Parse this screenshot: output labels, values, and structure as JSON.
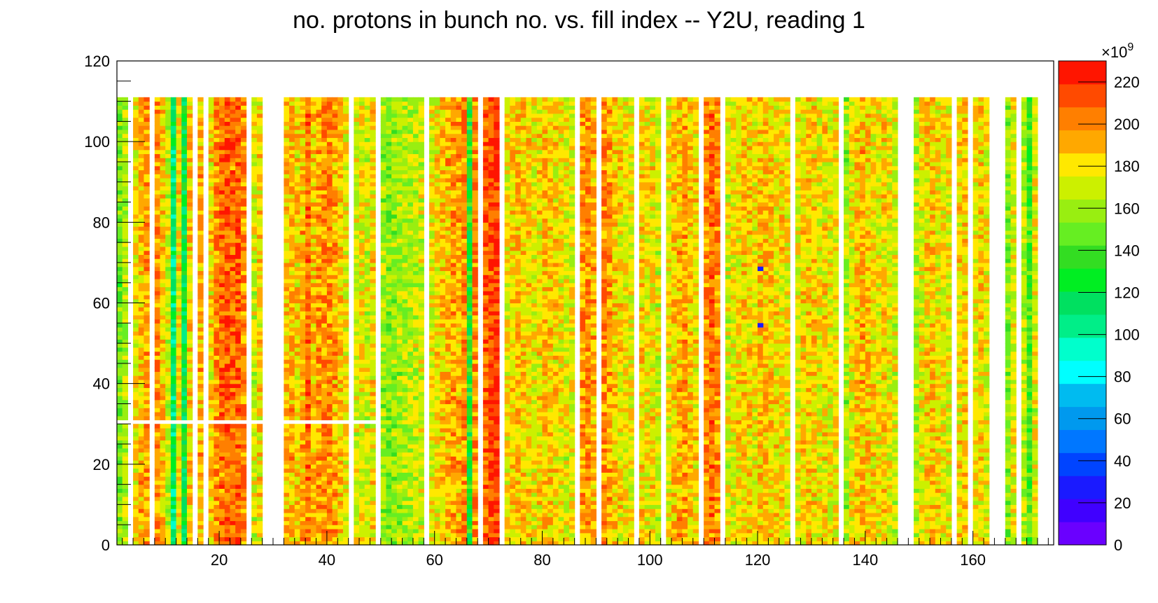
{
  "chart_data": {
    "type": "heatmap",
    "title": "no. protons in bunch no. vs. fill index -- Y2U, reading 1",
    "xlabel": "",
    "ylabel": "",
    "xlim": [
      1,
      175
    ],
    "ylim": [
      0,
      120
    ],
    "x_ticks": [
      20,
      40,
      60,
      80,
      100,
      120,
      140,
      160
    ],
    "y_ticks": [
      0,
      20,
      40,
      60,
      80,
      100,
      120
    ],
    "z_ticks": [
      0,
      20,
      40,
      60,
      80,
      100,
      120,
      140,
      160,
      180,
      200,
      220
    ],
    "z_exponent_label": "×10",
    "z_exponent_power": "9",
    "zlim": [
      0,
      230
    ],
    "bunch_range": [
      0,
      111
    ],
    "palette": [
      "#6a00ff",
      "#4000ff",
      "#1a1aff",
      "#0044ff",
      "#0077ff",
      "#0099ee",
      "#00bbf0",
      "#00ffff",
      "#00ffcc",
      "#00ee88",
      "#00e060",
      "#00ee22",
      "#33dd22",
      "#66ee22",
      "#99ee11",
      "#ccf000",
      "#ffe800",
      "#ffa800",
      "#ff7f00",
      "#ff4a00",
      "#ff1500"
    ],
    "fill_columns": [
      {
        "x": 1,
        "level": 150
      },
      {
        "x": 2,
        "level": 165
      },
      {
        "x": 4,
        "level": 178
      },
      {
        "x": 5,
        "level": 190
      },
      {
        "x": 6,
        "level": 195
      },
      {
        "x": 8,
        "level": 196
      },
      {
        "x": 9,
        "level": 185
      },
      {
        "x": 10,
        "level": 170
      },
      {
        "x": 11,
        "level": 110
      },
      {
        "x": 12,
        "level": 180
      },
      {
        "x": 13,
        "level": 120
      },
      {
        "x": 14,
        "level": 185
      },
      {
        "x": 16,
        "level": 190
      },
      {
        "x": 18,
        "level": 182
      },
      {
        "x": 19,
        "level": 200
      },
      {
        "x": 20,
        "level": 205
      },
      {
        "x": 21,
        "level": 208
      },
      {
        "x": 22,
        "level": 205
      },
      {
        "x": 23,
        "level": 210
      },
      {
        "x": 24,
        "level": 200
      },
      {
        "x": 26,
        "level": 170
      },
      {
        "x": 27,
        "level": 180
      },
      {
        "x": 32,
        "level": 185
      },
      {
        "x": 33,
        "level": 190
      },
      {
        "x": 34,
        "level": 182
      },
      {
        "x": 35,
        "level": 190
      },
      {
        "x": 36,
        "level": 205
      },
      {
        "x": 37,
        "level": 188
      },
      {
        "x": 38,
        "level": 195
      },
      {
        "x": 39,
        "level": 198
      },
      {
        "x": 40,
        "level": 200
      },
      {
        "x": 41,
        "level": 192
      },
      {
        "x": 42,
        "level": 185
      },
      {
        "x": 43,
        "level": 178
      },
      {
        "x": 45,
        "level": 172
      },
      {
        "x": 46,
        "level": 178
      },
      {
        "x": 47,
        "level": 170
      },
      {
        "x": 48,
        "level": 180
      },
      {
        "x": 50,
        "level": 160
      },
      {
        "x": 51,
        "level": 155
      },
      {
        "x": 52,
        "level": 158
      },
      {
        "x": 53,
        "level": 160
      },
      {
        "x": 54,
        "level": 162
      },
      {
        "x": 55,
        "level": 165
      },
      {
        "x": 56,
        "level": 168
      },
      {
        "x": 57,
        "level": 170
      },
      {
        "x": 59,
        "level": 175
      },
      {
        "x": 60,
        "level": 180
      },
      {
        "x": 61,
        "level": 185
      },
      {
        "x": 62,
        "level": 190
      },
      {
        "x": 63,
        "level": 195
      },
      {
        "x": 64,
        "level": 192
      },
      {
        "x": 65,
        "level": 198
      },
      {
        "x": 66,
        "level": 130
      },
      {
        "x": 67,
        "level": 200
      },
      {
        "x": 69,
        "level": 205
      },
      {
        "x": 70,
        "level": 215
      },
      {
        "x": 71,
        "level": 218
      },
      {
        "x": 73,
        "level": 178
      },
      {
        "x": 74,
        "level": 185
      },
      {
        "x": 75,
        "level": 190
      },
      {
        "x": 76,
        "level": 186
      },
      {
        "x": 77,
        "level": 182
      },
      {
        "x": 78,
        "level": 175
      },
      {
        "x": 79,
        "level": 180
      },
      {
        "x": 80,
        "level": 188
      },
      {
        "x": 81,
        "level": 185
      },
      {
        "x": 82,
        "level": 180
      },
      {
        "x": 83,
        "level": 178
      },
      {
        "x": 84,
        "level": 172
      },
      {
        "x": 85,
        "level": 175
      },
      {
        "x": 87,
        "level": 195
      },
      {
        "x": 88,
        "level": 198
      },
      {
        "x": 89,
        "level": 190
      },
      {
        "x": 91,
        "level": 200
      },
      {
        "x": 92,
        "level": 195
      },
      {
        "x": 93,
        "level": 185
      },
      {
        "x": 94,
        "level": 180
      },
      {
        "x": 95,
        "level": 178
      },
      {
        "x": 96,
        "level": 175
      },
      {
        "x": 98,
        "level": 182
      },
      {
        "x": 99,
        "level": 178
      },
      {
        "x": 100,
        "level": 180
      },
      {
        "x": 101,
        "level": 170
      },
      {
        "x": 103,
        "level": 175
      },
      {
        "x": 104,
        "level": 185
      },
      {
        "x": 105,
        "level": 190
      },
      {
        "x": 106,
        "level": 195
      },
      {
        "x": 107,
        "level": 185
      },
      {
        "x": 108,
        "level": 180
      },
      {
        "x": 110,
        "level": 200
      },
      {
        "x": 111,
        "level": 205
      },
      {
        "x": 112,
        "level": 200
      },
      {
        "x": 114,
        "level": 170
      },
      {
        "x": 115,
        "level": 175
      },
      {
        "x": 116,
        "level": 180
      },
      {
        "x": 117,
        "level": 185
      },
      {
        "x": 118,
        "level": 182
      },
      {
        "x": 119,
        "level": 178
      },
      {
        "x": 120,
        "level": 188
      },
      {
        "x": 121,
        "level": 190
      },
      {
        "x": 122,
        "level": 185
      },
      {
        "x": 123,
        "level": 180
      },
      {
        "x": 124,
        "level": 182
      },
      {
        "x": 125,
        "level": 178
      },
      {
        "x": 127,
        "level": 175
      },
      {
        "x": 128,
        "level": 180
      },
      {
        "x": 129,
        "level": 185
      },
      {
        "x": 130,
        "level": 182
      },
      {
        "x": 131,
        "level": 178
      },
      {
        "x": 132,
        "level": 180
      },
      {
        "x": 133,
        "level": 175
      },
      {
        "x": 134,
        "level": 178
      },
      {
        "x": 136,
        "level": 160
      },
      {
        "x": 137,
        "level": 175
      },
      {
        "x": 138,
        "level": 185
      },
      {
        "x": 139,
        "level": 190
      },
      {
        "x": 140,
        "level": 185
      },
      {
        "x": 141,
        "level": 180
      },
      {
        "x": 142,
        "level": 178
      },
      {
        "x": 143,
        "level": 182
      },
      {
        "x": 144,
        "level": 175
      },
      {
        "x": 145,
        "level": 170
      },
      {
        "x": 149,
        "level": 165
      },
      {
        "x": 150,
        "level": 178
      },
      {
        "x": 151,
        "level": 182
      },
      {
        "x": 152,
        "level": 185
      },
      {
        "x": 153,
        "level": 180
      },
      {
        "x": 154,
        "level": 178
      },
      {
        "x": 155,
        "level": 175
      },
      {
        "x": 157,
        "level": 180
      },
      {
        "x": 158,
        "level": 185
      },
      {
        "x": 160,
        "level": 178
      },
      {
        "x": 161,
        "level": 182
      },
      {
        "x": 162,
        "level": 176
      },
      {
        "x": 166,
        "level": 155
      },
      {
        "x": 167,
        "level": 175
      },
      {
        "x": 169,
        "level": 165
      },
      {
        "x": 170,
        "level": 140
      },
      {
        "x": 171,
        "level": 172
      }
    ],
    "low_cells": [
      {
        "x": 120,
        "y": 68,
        "value": 30
      },
      {
        "x": 120,
        "y": 54,
        "value": 30
      }
    ]
  }
}
